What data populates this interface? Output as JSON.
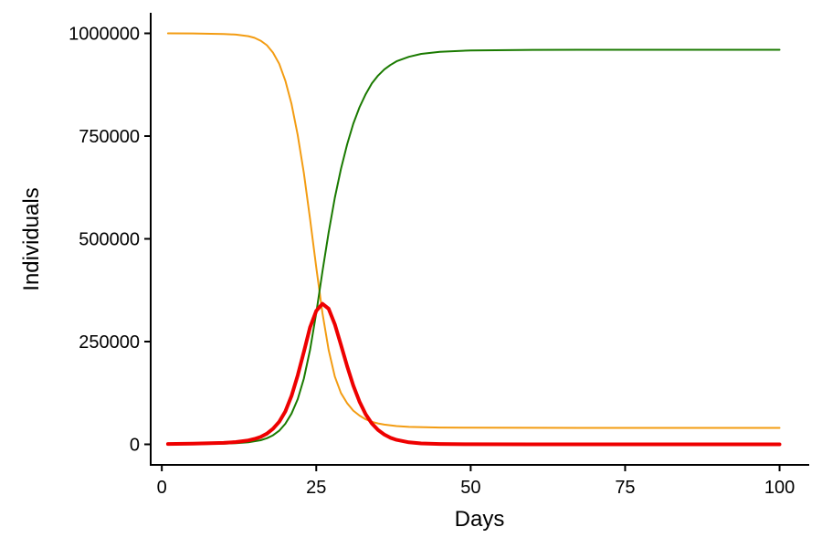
{
  "chart_data": {
    "type": "line",
    "title": "",
    "xlabel": "Days",
    "ylabel": "Individuals",
    "xlim": [
      -1.8,
      104.8
    ],
    "ylim": [
      -50000,
      1050000
    ],
    "x_ticks": [
      0,
      25,
      50,
      75,
      100
    ],
    "y_ticks": [
      0,
      250000,
      500000,
      750000,
      1000000
    ],
    "x_tick_labels": [
      "0",
      "25",
      "50",
      "75",
      "100"
    ],
    "y_tick_labels": [
      "0",
      "250000",
      "500000",
      "750000",
      "1000000"
    ],
    "grid": false,
    "legend": "none",
    "series": [
      {
        "color": "#f39c12",
        "emphasis": false,
        "x": [
          1,
          5,
          10,
          12,
          14,
          15,
          16,
          17,
          18,
          19,
          20,
          21,
          22,
          23,
          24,
          25,
          26,
          27,
          28,
          29,
          30,
          31,
          32,
          33,
          34,
          35,
          36,
          38,
          40,
          45,
          50,
          60,
          75,
          100
        ],
        "y": [
          1000000,
          999800,
          998500,
          997000,
          993000,
          989000,
          982000,
          971000,
          953000,
          926000,
          885000,
          828000,
          752000,
          660000,
          548000,
          430000,
          320000,
          230000,
          165000,
          125000,
          100000,
          82000,
          70000,
          61000,
          55000,
          51000,
          48000,
          44500,
          42500,
          41000,
          40500,
          40200,
          40000,
          40000
        ]
      },
      {
        "color": "#1a7a00",
        "emphasis": false,
        "x": [
          1,
          5,
          10,
          12,
          14,
          16,
          17,
          18,
          19,
          20,
          21,
          22,
          23,
          24,
          25,
          26,
          27,
          28,
          29,
          30,
          31,
          32,
          33,
          34,
          35,
          36,
          37,
          38,
          40,
          42,
          45,
          50,
          60,
          75,
          100
        ],
        "y": [
          0,
          300,
          1500,
          2800,
          5000,
          10000,
          15000,
          22000,
          33000,
          50000,
          75000,
          110000,
          160000,
          230000,
          320000,
          420000,
          515000,
          600000,
          670000,
          730000,
          780000,
          820000,
          852000,
          878000,
          897000,
          912000,
          923000,
          932000,
          943000,
          950000,
          955000,
          958500,
          959700,
          960000,
          960000
        ]
      },
      {
        "color": "#ee0000",
        "emphasis": true,
        "x": [
          1,
          5,
          10,
          12,
          14,
          15,
          16,
          17,
          18,
          19,
          20,
          21,
          22,
          23,
          24,
          25,
          26,
          27,
          28,
          29,
          30,
          31,
          32,
          33,
          34,
          35,
          36,
          37,
          38,
          40,
          42,
          45,
          50,
          60,
          75,
          100
        ],
        "y": [
          1000,
          1500,
          3500,
          5500,
          9500,
          13000,
          18000,
          26000,
          38000,
          55000,
          80000,
          118000,
          168000,
          225000,
          285000,
          325000,
          342000,
          330000,
          292000,
          242000,
          190000,
          143000,
          104000,
          73000,
          51000,
          35000,
          24000,
          16000,
          11000,
          5000,
          2300,
          800,
          150,
          10,
          0,
          0
        ]
      }
    ]
  }
}
